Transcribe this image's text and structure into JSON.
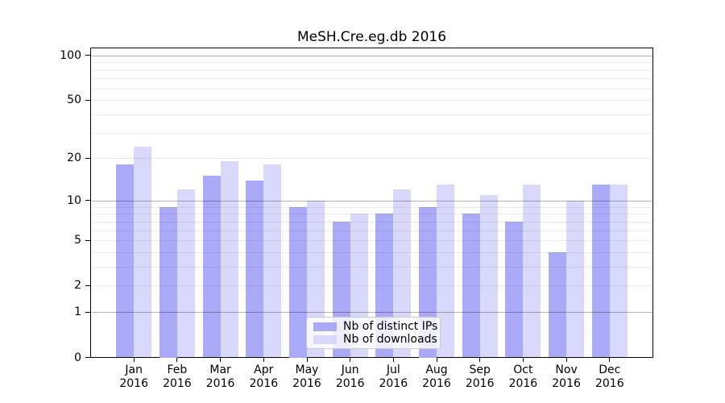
{
  "chart_data": {
    "type": "bar",
    "title": "MeSH.Cre.eg.db 2016",
    "categories": [
      "Jan",
      "Feb",
      "Mar",
      "Apr",
      "May",
      "Jun",
      "Jul",
      "Aug",
      "Sep",
      "Oct",
      "Nov",
      "Dec"
    ],
    "x_tick_year": "2016",
    "series": [
      {
        "name": "Nb of distinct IPs",
        "color": "#aaaaf8",
        "values": [
          18,
          9,
          15,
          14,
          9,
          7,
          8,
          9,
          8,
          7,
          4,
          13
        ]
      },
      {
        "name": "Nb of downloads",
        "color": "#d8d8fa",
        "values": [
          24,
          12,
          19,
          18,
          10,
          8,
          12,
          13,
          11,
          13,
          10,
          13
        ]
      }
    ],
    "y_scale": "log1p",
    "y_ticks": [
      0,
      1,
      2,
      5,
      10,
      20,
      50,
      100
    ],
    "ylim": [
      0,
      112
    ],
    "grid": true,
    "grid_minor_color": "#ebebeb",
    "grid_major_color": "#b3b3b3",
    "axis_color": "#000000",
    "legend_position": "lower center"
  }
}
